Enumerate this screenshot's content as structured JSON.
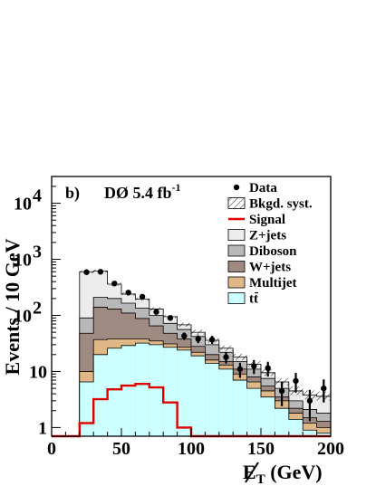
{
  "chart_data": {
    "type": "bar",
    "panel_label": "b)",
    "experiment_label": "DØ 5.4 fb",
    "experiment_label_sup": "-1",
    "xlabel_main": "E",
    "xlabel_sub": "T",
    "xlabel_unit": " (GeV)",
    "ylabel": "Events / 10 GeV",
    "xlim": [
      0,
      200
    ],
    "ylim": [
      0.7,
      30000
    ],
    "ylog": true,
    "x_ticks": [
      "0",
      "50",
      "100",
      "150",
      "200"
    ],
    "x_tick_values": [
      0,
      50,
      100,
      150,
      200
    ],
    "y_ticks": [
      {
        "value": 1,
        "base": "1",
        "exp": ""
      },
      {
        "value": 10,
        "base": "10",
        "exp": ""
      },
      {
        "value": 100,
        "base": "10",
        "exp": "2"
      },
      {
        "value": 1000,
        "base": "10",
        "exp": "3"
      },
      {
        "value": 10000,
        "base": "10",
        "exp": "4"
      }
    ],
    "bin_edges": [
      20,
      30,
      40,
      50,
      60,
      70,
      80,
      90,
      100,
      110,
      120,
      130,
      140,
      150,
      160,
      170,
      180,
      190,
      200
    ],
    "stack_cumulative": [
      {
        "name": "tt",
        "color": "#ccffff",
        "values": [
          6.5,
          20,
          26,
          29,
          32,
          30,
          27,
          24,
          19,
          14,
          11,
          7,
          5,
          3.5,
          2.2,
          1.4,
          0.9,
          0.8
        ]
      },
      {
        "name": "Multijet",
        "color": "#e0b888",
        "values": [
          10,
          37,
          38,
          38,
          38,
          35,
          31,
          27,
          22,
          16,
          13,
          9,
          6.5,
          4.5,
          3,
          1.8,
          1.2,
          1
        ]
      },
      {
        "name": "W+jets",
        "color": "#9e8a80",
        "values": [
          48,
          140,
          130,
          110,
          88,
          65,
          48,
          38,
          28,
          20,
          15,
          11,
          8,
          5.5,
          3.5,
          2.2,
          1.5,
          1.3
        ]
      },
      {
        "name": "Diboson",
        "color": "#b8b8b8",
        "values": [
          90,
          210,
          200,
          165,
          135,
          100,
          72,
          56,
          42,
          30,
          22,
          15,
          11,
          7.5,
          5,
          3,
          2.1,
          1.8
        ]
      },
      {
        "name": "Z+jets",
        "color": "#ececec",
        "values": [
          600,
          620,
          360,
          240,
          195,
          130,
          95,
          68,
          50,
          36,
          26,
          18,
          13.5,
          9.5,
          6.5,
          4.5,
          3.8,
          3.6
        ]
      }
    ],
    "syst_band": {
      "values_low": [
        560,
        580,
        335,
        225,
        182,
        122,
        89,
        63,
        45,
        32.5,
        23,
        16,
        12,
        8.3,
        5.6,
        3.8,
        3.2,
        3.0
      ],
      "values_high": [
        640,
        660,
        385,
        255,
        208,
        140,
        103,
        74,
        56,
        40,
        29,
        20.5,
        15.5,
        11,
        7.6,
        5.4,
        4.6,
        4.4
      ]
    },
    "signal": {
      "name": "Signal",
      "color": "#e00000",
      "x": [
        0,
        20,
        20,
        30,
        30,
        40,
        40,
        50,
        50,
        60,
        60,
        70,
        70,
        80,
        80,
        90,
        90,
        100,
        100,
        200
      ],
      "values": [
        0.7,
        0.7,
        1.2,
        1.2,
        3.2,
        3.2,
        4.8,
        4.8,
        5.6,
        5.6,
        6.0,
        6.0,
        5.2,
        5.2,
        2.8,
        2.8,
        1.0,
        1.0,
        0.7,
        0.7
      ]
    },
    "data_points": {
      "name": "Data",
      "x": [
        25,
        35,
        45,
        55,
        65,
        75,
        85,
        95,
        105,
        115,
        125,
        135,
        145,
        155,
        165,
        175,
        185,
        195
      ],
      "y": [
        590,
        600,
        370,
        255,
        215,
        115,
        90,
        43,
        38,
        37,
        18,
        11,
        12.5,
        11.5,
        4.5,
        6.8,
        3,
        5
      ],
      "err_low": [
        24,
        24,
        19,
        16,
        15,
        11,
        9.5,
        6.5,
        6.1,
        6.1,
        4.2,
        3.3,
        3.5,
        3.4,
        2.1,
        2.6,
        1.7,
        2.2
      ],
      "err_high": [
        24,
        24,
        19,
        16,
        15,
        11,
        9.5,
        6.5,
        6.1,
        6.1,
        4.2,
        3.3,
        3.5,
        3.4,
        2.1,
        2.6,
        1.7,
        2.2
      ]
    },
    "legend": [
      {
        "key": "data",
        "label": "Data"
      },
      {
        "key": "syst",
        "label": "Bkgd. syst."
      },
      {
        "key": "signal",
        "label": "Signal",
        "color": "#e00000"
      },
      {
        "key": "zjets",
        "label": "Z+jets",
        "color": "#ececec"
      },
      {
        "key": "diboson",
        "label": "Diboson",
        "color": "#b8b8b8"
      },
      {
        "key": "wjets",
        "label": "W+jets",
        "color": "#9e8a80"
      },
      {
        "key": "multijet",
        "label": "Multijet",
        "color": "#e0b888"
      },
      {
        "key": "tt",
        "label": "tt",
        "color": "#ccffff"
      }
    ],
    "legend_placement": "top-right"
  }
}
